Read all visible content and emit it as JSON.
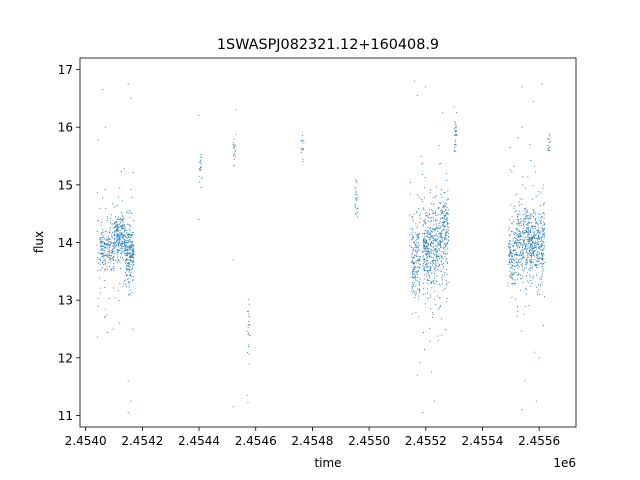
{
  "chart_data": {
    "type": "scatter",
    "title": "1SWASPJ082321.12+160408.9",
    "xlabel": "time",
    "ylabel": "flux",
    "x_offset_label": "1e6",
    "xlim": [
      2.45398,
      2.45573
    ],
    "ylim": [
      10.8,
      17.2
    ],
    "x_ticks": [
      2.454,
      2.4542,
      2.4544,
      2.4546,
      2.4548,
      2.455,
      2.4552,
      2.4554,
      2.4556
    ],
    "x_tick_labels": [
      "2.4540",
      "2.4542",
      "2.4544",
      "2.4546",
      "2.4548",
      "2.4550",
      "2.4552",
      "2.4554",
      "2.4556"
    ],
    "y_ticks": [
      11,
      12,
      13,
      14,
      15,
      16,
      17
    ],
    "y_tick_labels": [
      "11",
      "12",
      "13",
      "14",
      "15",
      "16",
      "17"
    ],
    "grid": false,
    "marker_color": "#1f77b4",
    "series": [
      {
        "clusters": [
          {
            "x_range": [
              2.45405,
              2.4541
            ],
            "y_center": 13.9,
            "y_spread": 0.35,
            "count": 160
          },
          {
            "x_range": [
              2.4541,
              2.45414
            ],
            "y_center": 14.1,
            "y_spread": 0.4,
            "count": 220
          },
          {
            "x_range": [
              2.45414,
              2.45417
            ],
            "y_center": 13.8,
            "y_spread": 0.55,
            "count": 200
          },
          {
            "x_range": [
              2.45404,
              2.45417
            ],
            "y_center": 14.0,
            "y_spread": 1.4,
            "count": 120
          },
          {
            "x_range": [
              2.4544,
              2.45441
            ],
            "y_center": 15.3,
            "y_spread": 0.35,
            "count": 22
          },
          {
            "x_range": [
              2.45452,
              2.45453
            ],
            "y_center": 15.6,
            "y_spread": 0.25,
            "count": 18
          },
          {
            "x_range": [
              2.45457,
              2.45458
            ],
            "y_center": 12.5,
            "y_spread": 0.8,
            "count": 22
          },
          {
            "x_range": [
              2.45476,
              2.45477
            ],
            "y_center": 15.6,
            "y_spread": 0.25,
            "count": 14
          },
          {
            "x_range": [
              2.45495,
              2.45496
            ],
            "y_center": 14.7,
            "y_spread": 0.4,
            "count": 24
          },
          {
            "x_range": [
              2.45515,
              2.45518
            ],
            "y_center": 13.7,
            "y_spread": 0.7,
            "count": 150
          },
          {
            "x_range": [
              2.45519,
              2.45525
            ],
            "y_center": 13.9,
            "y_spread": 0.75,
            "count": 340
          },
          {
            "x_range": [
              2.45525,
              2.45528
            ],
            "y_center": 14.2,
            "y_spread": 0.6,
            "count": 160
          },
          {
            "x_range": [
              2.45514,
              2.45528
            ],
            "y_center": 14.0,
            "y_spread": 1.5,
            "count": 150
          },
          {
            "x_range": [
              2.4553,
              2.45531
            ],
            "y_center": 15.9,
            "y_spread": 0.4,
            "count": 30
          },
          {
            "x_range": [
              2.45549,
              2.45552
            ],
            "y_center": 13.8,
            "y_spread": 0.5,
            "count": 120
          },
          {
            "x_range": [
              2.45552,
              2.45558
            ],
            "y_center": 14.0,
            "y_spread": 0.55,
            "count": 320
          },
          {
            "x_range": [
              2.45558,
              2.45562
            ],
            "y_center": 14.0,
            "y_spread": 0.55,
            "count": 200
          },
          {
            "x_range": [
              2.45549,
              2.45562
            ],
            "y_center": 14.0,
            "y_spread": 1.4,
            "count": 140
          },
          {
            "x_range": [
              2.45563,
              2.45564
            ],
            "y_center": 15.7,
            "y_spread": 0.2,
            "count": 14
          }
        ],
        "outliers": [
          [
            2.45406,
            16.65
          ],
          [
            2.45407,
            16.0
          ],
          [
            2.45415,
            16.75
          ],
          [
            2.45416,
            16.5
          ],
          [
            2.45415,
            11.6
          ],
          [
            2.45416,
            11.25
          ],
          [
            2.45415,
            11.05
          ],
          [
            2.45412,
            12.6
          ],
          [
            2.4544,
            16.2
          ],
          [
            2.4544,
            14.4
          ],
          [
            2.45453,
            16.3
          ],
          [
            2.45452,
            13.7
          ],
          [
            2.45452,
            11.15
          ],
          [
            2.45457,
            11.35
          ],
          [
            2.45516,
            16.8
          ],
          [
            2.45517,
            16.55
          ],
          [
            2.4552,
            16.7
          ],
          [
            2.45517,
            11.7
          ],
          [
            2.45519,
            11.05
          ],
          [
            2.45523,
            11.25
          ],
          [
            2.45522,
            11.75
          ],
          [
            2.45526,
            16.25
          ],
          [
            2.45554,
            16.7
          ],
          [
            2.45554,
            16.0
          ],
          [
            2.45558,
            16.45
          ],
          [
            2.45561,
            16.75
          ],
          [
            2.45554,
            11.1
          ],
          [
            2.45555,
            11.6
          ],
          [
            2.45559,
            11.25
          ],
          [
            2.4556,
            12.0
          ]
        ]
      }
    ]
  }
}
